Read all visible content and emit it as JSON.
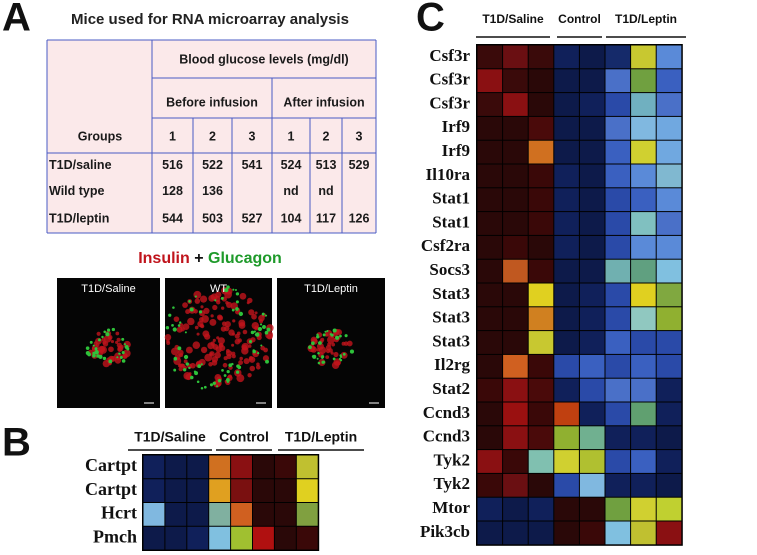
{
  "panel_labels": [
    "A",
    "B",
    "C"
  ],
  "panel_a": {
    "title": "Mice used for RNA microarray analysis",
    "table": {
      "header": {
        "groups": "Groups",
        "blood_glucose": "Blood glucose levels (mg/dl)",
        "before": "Before infusion",
        "after": "After infusion",
        "numbers": [
          1,
          2,
          3,
          1,
          2,
          3
        ]
      },
      "rows": [
        [
          "T1D/saline",
          516,
          522,
          541,
          524,
          513,
          529
        ],
        [
          "Wild type",
          128,
          136,
          null,
          "nd",
          "nd",
          null
        ],
        [
          "T1D/leptin",
          544,
          503,
          527,
          104,
          117,
          126
        ]
      ]
    },
    "staining": {
      "insulin": "Insulin",
      "plus": "+",
      "glucagon": "Glucagon",
      "insulin_color": "#c0141c",
      "glucagon_color": "#1e9a2a"
    },
    "images": [
      "T1D/Saline",
      "WT",
      "T1D/Leptin"
    ]
  },
  "panel_b": {
    "groups": [
      "T1D/Saline",
      "Control",
      "T1D/Leptin"
    ],
    "rows": [
      {
        "gene": "Cartpt",
        "colors": [
          "#10205a",
          "#0d1a4a",
          "#0d1a4a",
          "#d07020",
          "#8a1012",
          "#2a0808",
          "#3a0808",
          "#c0c030"
        ]
      },
      {
        "gene": "Cartpt",
        "colors": [
          "#10205a",
          "#0d1a4a",
          "#0d1a4a",
          "#e0a020",
          "#7a1010",
          "#2a0808",
          "#2a0808",
          "#e0d020"
        ]
      },
      {
        "gene": "Hcrt",
        "colors": [
          "#80b8e0",
          "#0d1a4a",
          "#0d1a4a",
          "#80b0a0",
          "#d06020",
          "#2a0808",
          "#2a0808",
          "#80a040"
        ]
      },
      {
        "gene": "Pmch",
        "colors": [
          "#0d1a4a",
          "#0d1a4a",
          "#10205a",
          "#80c0e0",
          "#a0c030",
          "#b01010",
          "#2a0808",
          "#3a0808"
        ]
      }
    ]
  },
  "panel_c": {
    "groups": [
      "T1D/Saline",
      "Control",
      "T1D/Leptin"
    ],
    "rows": [
      {
        "gene": "Csf3r",
        "colors": [
          "#3a0a0a",
          "#6a0f12",
          "#3a0a0a",
          "#10205a",
          "#0d1a4a",
          "#152a6a",
          "#c8c830",
          "#5a8ad8"
        ]
      },
      {
        "gene": "Csf3r",
        "colors": [
          "#8a1012",
          "#3a0a0a",
          "#2a0808",
          "#0d1a4a",
          "#0d1a4a",
          "#4a70c8",
          "#70a040",
          "#3a60c0"
        ]
      },
      {
        "gene": "Csf3r",
        "colors": [
          "#3a0a0a",
          "#8a1012",
          "#2a0808",
          "#0d1a4a",
          "#10205a",
          "#2a4aa8",
          "#70b0c0",
          "#4a70c8"
        ]
      },
      {
        "gene": "Irf9",
        "colors": [
          "#2a0808",
          "#2a0808",
          "#4a0a0a",
          "#0d1a4a",
          "#0d1a4a",
          "#4a70c8",
          "#80b8e0",
          "#70a8e0"
        ]
      },
      {
        "gene": "Irf9",
        "colors": [
          "#2a0808",
          "#2a0808",
          "#d07020",
          "#0d1a4a",
          "#0d1a4a",
          "#3a60c0",
          "#d0d030",
          "#70a8e0"
        ]
      },
      {
        "gene": "Il10ra",
        "colors": [
          "#2a0808",
          "#2a0808",
          "#3a0808",
          "#10205a",
          "#0d1a4a",
          "#3a60c0",
          "#5a8ad8",
          "#80b8d0"
        ]
      },
      {
        "gene": "Stat1",
        "colors": [
          "#2a0808",
          "#2a0808",
          "#3a0808",
          "#10205a",
          "#0d1a4a",
          "#2a4aa8",
          "#3a60c0",
          "#5a8ad8"
        ]
      },
      {
        "gene": "Stat1",
        "colors": [
          "#2a0808",
          "#2a0808",
          "#3a0808",
          "#10205a",
          "#0d1a4a",
          "#2a4aa8",
          "#80c0c0",
          "#4a70c8"
        ]
      },
      {
        "gene": "Csf2ra",
        "colors": [
          "#2a0808",
          "#3a0808",
          "#2a0808",
          "#10205a",
          "#0d1a4a",
          "#2a4aa8",
          "#5a8ad8",
          "#5a8ad8"
        ]
      },
      {
        "gene": "Socs3",
        "colors": [
          "#2a0808",
          "#c05820",
          "#3a0808",
          "#0d1a4a",
          "#0d1a4a",
          "#70b0b0",
          "#60a080",
          "#80c0e0"
        ]
      },
      {
        "gene": "Stat3",
        "colors": [
          "#2a0808",
          "#2a0808",
          "#e0d020",
          "#0d1a4a",
          "#10205a",
          "#2a4aa8",
          "#e0d020",
          "#80a840"
        ]
      },
      {
        "gene": "Stat3",
        "colors": [
          "#2a0808",
          "#2a0808",
          "#d08020",
          "#0d1a4a",
          "#10205a",
          "#2a4aa8",
          "#90c8c0",
          "#90b030"
        ]
      },
      {
        "gene": "Stat3",
        "colors": [
          "#2a0808",
          "#2a0808",
          "#c8c830",
          "#0d1a4a",
          "#10205a",
          "#3a60c0",
          "#2a4aa8",
          "#2a4aa8"
        ]
      },
      {
        "gene": "Il2rg",
        "colors": [
          "#2a0808",
          "#d06020",
          "#3a0808",
          "#2a4aa8",
          "#3a60c0",
          "#2a4aa8",
          "#3a60c0",
          "#2a4aa8"
        ]
      },
      {
        "gene": "Stat2",
        "colors": [
          "#3a0808",
          "#8a1012",
          "#4a0a0a",
          "#10205a",
          "#2a4aa8",
          "#4a70c8",
          "#4a70c8",
          "#10205a"
        ]
      },
      {
        "gene": "Ccnd3",
        "colors": [
          "#2a0808",
          "#9a1010",
          "#3a0808",
          "#c04010",
          "#10205a",
          "#2a4aa8",
          "#60a070",
          "#10205a"
        ]
      },
      {
        "gene": "Ccnd3",
        "colors": [
          "#2a0808",
          "#8a1012",
          "#4a0a0a",
          "#90b030",
          "#70b090",
          "#10205a",
          "#10205a",
          "#0d1a4a"
        ]
      },
      {
        "gene": "Tyk2",
        "colors": [
          "#8a1012",
          "#3a0808",
          "#80c0b0",
          "#d0d030",
          "#b0c030",
          "#2a4aa8",
          "#3a60c0",
          "#10205a"
        ]
      },
      {
        "gene": "Tyk2",
        "colors": [
          "#3a0808",
          "#6a0f12",
          "#2a0808",
          "#2a4aa8",
          "#80b8e0",
          "#10205a",
          "#10205a",
          "#0d1a4a"
        ]
      },
      {
        "gene": "Mtor",
        "colors": [
          "#10205a",
          "#0d1a4a",
          "#10205a",
          "#2a0808",
          "#2a0808",
          "#70a040",
          "#d0d030",
          "#c0d030"
        ]
      },
      {
        "gene": "Pik3cb",
        "colors": [
          "#0d1a4a",
          "#0d1a4a",
          "#0d1a4a",
          "#2a0808",
          "#3a0808",
          "#80c0e0",
          "#c0c030",
          "#8a1012"
        ]
      }
    ]
  }
}
